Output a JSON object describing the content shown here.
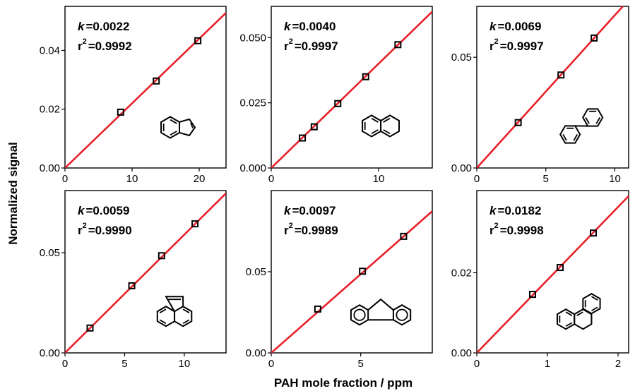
{
  "figure": {
    "ylabel": "Normalized signal",
    "xlabel": "PAH mole fraction / ppm"
  },
  "chart_data": [
    {
      "type": "scatter",
      "molecule_icon": "indene-structure",
      "k_label": "k",
      "k_value": "=0.0022",
      "r2_label": "r",
      "r2_exp": "2",
      "r2_value": "=0.9992",
      "x": [
        8.3,
        13.6,
        19.8
      ],
      "y": [
        0.019,
        0.0296,
        0.0433
      ],
      "fit_slope": 0.0022,
      "xlim": [
        0,
        24
      ],
      "ylim": [
        0,
        0.055
      ],
      "xticks": [
        0,
        10,
        20
      ],
      "xtick_labels": [
        "0",
        "10",
        "20"
      ],
      "yticks": [
        0,
        0.02,
        0.04
      ],
      "ytick_labels": [
        "0.00",
        "0.02",
        "0.04"
      ],
      "line_color": "#e8202a",
      "marker_color": "#000000"
    },
    {
      "type": "scatter",
      "molecule_icon": "naphthalene-structure",
      "k_label": "k",
      "k_value": "=0.0040",
      "r2_label": "r",
      "r2_exp": "2",
      "r2_value": "=0.9997",
      "x": [
        2.9,
        4.0,
        6.2,
        8.8,
        11.8
      ],
      "y": [
        0.0115,
        0.0158,
        0.0247,
        0.035,
        0.0473
      ],
      "fit_slope": 0.004,
      "xlim": [
        0,
        15
      ],
      "ylim": [
        0,
        0.062
      ],
      "xticks": [
        0,
        10
      ],
      "xtick_labels": [
        "0",
        "10"
      ],
      "yticks": [
        0,
        0.025,
        0.05
      ],
      "ytick_labels": [
        "0.000",
        "0.025",
        "0.050"
      ],
      "line_color": "#e8202a",
      "marker_color": "#000000"
    },
    {
      "type": "scatter",
      "molecule_icon": "biphenyl-structure",
      "k_label": "k",
      "k_value": "=0.0069",
      "r2_label": "r",
      "r2_exp": "2",
      "r2_value": "=0.9997",
      "x": [
        3.0,
        6.1,
        8.5
      ],
      "y": [
        0.0205,
        0.042,
        0.0587
      ],
      "fit_slope": 0.0069,
      "xlim": [
        0,
        11
      ],
      "ylim": [
        0,
        0.073
      ],
      "xticks": [
        0,
        5,
        10
      ],
      "xtick_labels": [
        "0",
        "5",
        "10"
      ],
      "yticks": [
        0,
        0.05
      ],
      "ytick_labels": [
        "0.00",
        "0.05"
      ],
      "line_color": "#e8202a",
      "marker_color": "#000000"
    },
    {
      "type": "scatter",
      "molecule_icon": "acenaphthylene-structure",
      "k_label": "k",
      "k_value": "=0.0059",
      "r2_label": "r",
      "r2_exp": "2",
      "r2_value": "=0.9990",
      "x": [
        2.1,
        5.6,
        8.1,
        10.9
      ],
      "y": [
        0.0124,
        0.0335,
        0.0485,
        0.0644
      ],
      "fit_slope": 0.0059,
      "xlim": [
        0,
        13.5
      ],
      "ylim": [
        0,
        0.081
      ],
      "xticks": [
        0,
        5,
        10
      ],
      "xtick_labels": [
        "0",
        "5",
        "10"
      ],
      "yticks": [
        0,
        0.05
      ],
      "ytick_labels": [
        "0.00",
        "0.05"
      ],
      "line_color": "#e8202a",
      "marker_color": "#000000"
    },
    {
      "type": "scatter",
      "molecule_icon": "fluorene-structure",
      "k_label": "k",
      "k_value": "=0.0097",
      "r2_label": "r",
      "r2_exp": "2",
      "r2_value": "=0.9989",
      "x": [
        2.6,
        5.1,
        7.4
      ],
      "y": [
        0.027,
        0.0503,
        0.0718
      ],
      "fit_slope": 0.0097,
      "xlim": [
        0,
        9
      ],
      "ylim": [
        0,
        0.1
      ],
      "xticks": [
        0,
        5
      ],
      "xtick_labels": [
        "0",
        "5"
      ],
      "yticks": [
        0,
        0.05
      ],
      "ytick_labels": [
        "0.00",
        "0.05"
      ],
      "line_color": "#e8202a",
      "marker_color": "#000000"
    },
    {
      "type": "scatter",
      "molecule_icon": "phenanthrene-structure",
      "k_label": "k",
      "k_value": "=0.0182",
      "r2_label": "r",
      "r2_exp": "2",
      "r2_value": "=0.9998",
      "x": [
        0.79,
        1.18,
        1.65
      ],
      "y": [
        0.0146,
        0.0213,
        0.0299
      ],
      "fit_slope": 0.0182,
      "xlim": [
        0,
        2.15
      ],
      "ylim": [
        0,
        0.0405
      ],
      "xticks": [
        0,
        1,
        2
      ],
      "xtick_labels": [
        "0",
        "1",
        "2"
      ],
      "yticks": [
        0,
        0.02
      ],
      "ytick_labels": [
        "0.00",
        "0.02"
      ],
      "line_color": "#e8202a",
      "marker_color": "#000000"
    }
  ]
}
